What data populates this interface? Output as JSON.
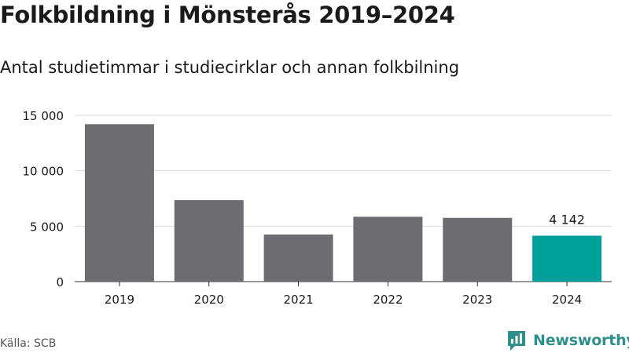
{
  "colors": {
    "bar": "#6d6c71",
    "highlight": "#00a09a",
    "grid": "#d9d9d9",
    "axis": "#333333",
    "brand": "#2f8f8a"
  },
  "chart_data": {
    "type": "bar",
    "title": "Folkbildning i Mönsterås 2019–2024",
    "subtitle": "Antal studietimmar i studiecirklar och annan folkbilning",
    "categories": [
      "2019",
      "2020",
      "2021",
      "2022",
      "2023",
      "2024"
    ],
    "values": [
      14200,
      7350,
      4250,
      5850,
      5750,
      4142
    ],
    "highlight_index": 5,
    "data_labels": [
      {
        "category": "2024",
        "text": "4 142"
      }
    ],
    "ylim": [
      0,
      15000
    ],
    "yticks": [
      0,
      5000,
      10000,
      15000
    ],
    "ytick_labels": [
      "0",
      "5 000",
      "10 000",
      "15 000"
    ],
    "grid": true,
    "xlabel": "",
    "ylabel": ""
  },
  "footer": {
    "source": "Källa: SCB",
    "brand": "Newsworthy"
  },
  "icons": {
    "brand": "newsworthy-logo-icon"
  }
}
